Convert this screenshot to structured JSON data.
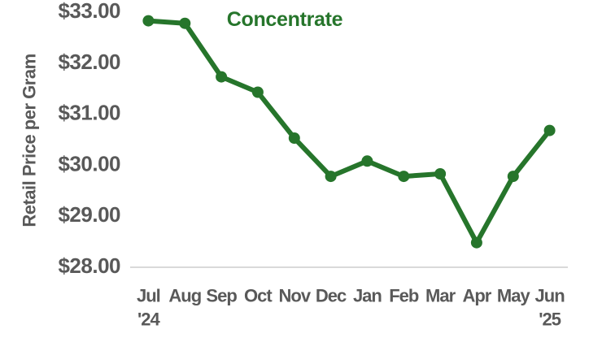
{
  "chart_data": {
    "type": "line",
    "title": "Concentrate",
    "ylabel": "Retail Price per Gram",
    "xlabel": "",
    "categories": [
      "Jul",
      "Aug",
      "Sep",
      "Oct",
      "Nov",
      "Dec",
      "Jan",
      "Feb",
      "Mar",
      "Apr",
      "May",
      "Jun"
    ],
    "category_year_notes": [
      {
        "index": 0,
        "label": "'24"
      },
      {
        "index": 11,
        "label": "'25"
      }
    ],
    "series": [
      {
        "name": "Concentrate",
        "values": [
          32.8,
          32.75,
          31.7,
          31.4,
          30.5,
          29.75,
          30.05,
          29.75,
          29.8,
          28.45,
          29.75,
          30.65
        ]
      }
    ],
    "ylim": [
      28.0,
      33.0
    ],
    "y_ticks": [
      {
        "label": "$33.00",
        "value": 33.0
      },
      {
        "label": "$32.00",
        "value": 32.0
      },
      {
        "label": "$31.00",
        "value": 31.0
      },
      {
        "label": "$30.00",
        "value": 30.0
      },
      {
        "label": "$29.00",
        "value": 29.0
      },
      {
        "label": "$28.00",
        "value": 28.0
      }
    ],
    "grid": false,
    "legend_position": "none",
    "marker": "circle",
    "colors": {
      "series": "#26752b",
      "title": "#26752b",
      "axis_text": "#595959",
      "axis_line": "#d9d9d9",
      "background": "#ffffff"
    }
  }
}
